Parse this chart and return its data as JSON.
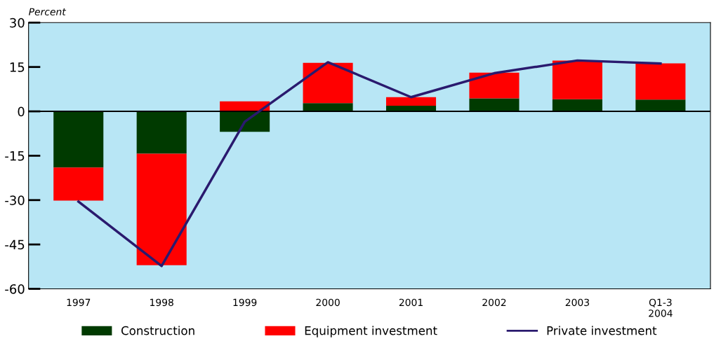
{
  "chart_data": {
    "type": "bar",
    "stacked": true,
    "ylabel": "Percent",
    "categories": [
      "1997",
      "1998",
      "1999",
      "2000",
      "2001",
      "2002",
      "2003",
      "Q1-3\n2004"
    ],
    "series": [
      {
        "name": "Construction",
        "color": "#003a00",
        "values": [
          -19,
          -14.3,
          -6.9,
          2.8,
          1.9,
          4.4,
          4.1,
          4.0
        ]
      },
      {
        "name": "Equipment investment",
        "color": "#ff0000",
        "values": [
          -11.2,
          -37.7,
          3.4,
          13.6,
          2.9,
          8.7,
          13.1,
          12.2
        ]
      },
      {
        "name": "Private investment",
        "type": "line",
        "color": "#2a1a6e",
        "values": [
          -30.5,
          -52.3,
          -3.5,
          16.6,
          4.8,
          12.9,
          17.2,
          16.2
        ]
      }
    ],
    "ylim": [
      -60,
      30
    ],
    "yticks": [
      -60,
      -45,
      -30,
      -15,
      0,
      15,
      30
    ],
    "ref_lines": [
      {
        "axis": "y",
        "value": 0,
        "color": "#000000"
      }
    ],
    "grid": false,
    "legend": "bottom",
    "marker": "none"
  }
}
